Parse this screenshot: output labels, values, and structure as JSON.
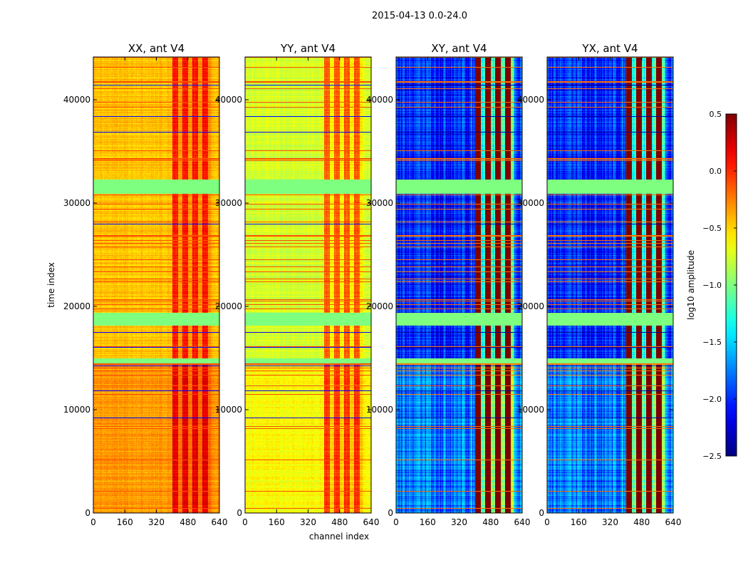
{
  "chart_data": {
    "type": "heatmap",
    "suptitle": "2015-04-13 0.0-24.0",
    "xlabel": "channel index",
    "ylabel": "time index",
    "xlim": [
      0,
      640
    ],
    "ylim": [
      0,
      44140
    ],
    "xticks": [
      "0",
      "160",
      "320",
      "480",
      "640"
    ],
    "yticks": [
      "0",
      "10000",
      "20000",
      "30000",
      "40000"
    ],
    "panels": [
      {
        "title": "XX, ant V4",
        "base": -0.45,
        "hot": 0.1
      },
      {
        "title": "YY, ant V4",
        "base": -0.75,
        "hot": 0.0
      },
      {
        "title": "XY, ant V4",
        "base": -2.0,
        "hot": 0.2
      },
      {
        "title": "YX, ant V4",
        "base": -2.0,
        "hot": 0.2
      }
    ],
    "hot_channel_range": [
      400,
      600
    ],
    "colorbar": {
      "label": "log10 amplitude",
      "colormap": "jet",
      "range": [
        -2.5,
        0.5
      ],
      "ticks": [
        "0.5",
        "0.0",
        "−0.5",
        "−1.0",
        "−1.5",
        "−2.0",
        "−2.5"
      ]
    }
  }
}
